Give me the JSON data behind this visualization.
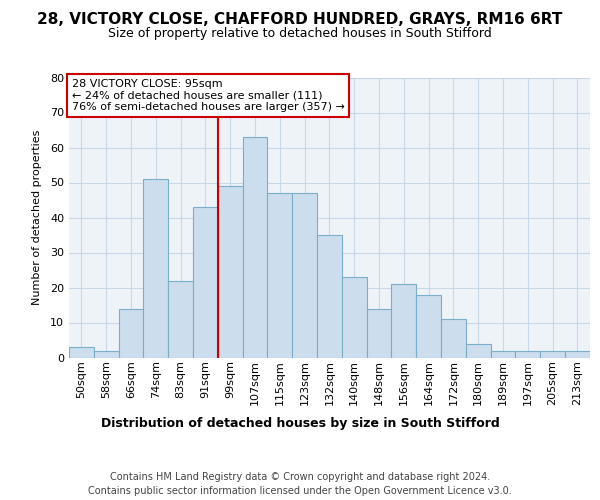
{
  "title_line1": "28, VICTORY CLOSE, CHAFFORD HUNDRED, GRAYS, RM16 6RT",
  "title_line2": "Size of property relative to detached houses in South Stifford",
  "xlabel": "Distribution of detached houses by size in South Stifford",
  "ylabel": "Number of detached properties",
  "footer_line1": "Contains HM Land Registry data © Crown copyright and database right 2024.",
  "footer_line2": "Contains public sector information licensed under the Open Government Licence v3.0.",
  "annotation_title": "28 VICTORY CLOSE: 95sqm",
  "annotation_line2": "← 24% of detached houses are smaller (111)",
  "annotation_line3": "76% of semi-detached houses are larger (357) →",
  "bar_labels": [
    "50sqm",
    "58sqm",
    "66sqm",
    "74sqm",
    "83sqm",
    "91sqm",
    "99sqm",
    "107sqm",
    "115sqm",
    "123sqm",
    "132sqm",
    "140sqm",
    "148sqm",
    "156sqm",
    "164sqm",
    "172sqm",
    "180sqm",
    "189sqm",
    "197sqm",
    "205sqm",
    "213sqm"
  ],
  "bar_values": [
    3,
    2,
    14,
    51,
    22,
    43,
    49,
    63,
    47,
    47,
    35,
    23,
    14,
    21,
    18,
    11,
    4,
    2,
    2,
    2,
    2
  ],
  "bar_color": "#ccdded",
  "bar_edge_color": "#7aaecb",
  "vline_color": "#cc0000",
  "vline_x": 5.5,
  "annotation_box_edgecolor": "#cc0000",
  "ylim_max": 80,
  "yticks": [
    0,
    10,
    20,
    30,
    40,
    50,
    60,
    70,
    80
  ],
  "grid_color": "#c8d8e8",
  "bg_color": "#eef3f8",
  "title1_fontsize": 11,
  "title2_fontsize": 9,
  "ylabel_fontsize": 8,
  "xlabel_fontsize": 9,
  "tick_fontsize": 8,
  "ann_fontsize": 8,
  "footer_fontsize": 7
}
